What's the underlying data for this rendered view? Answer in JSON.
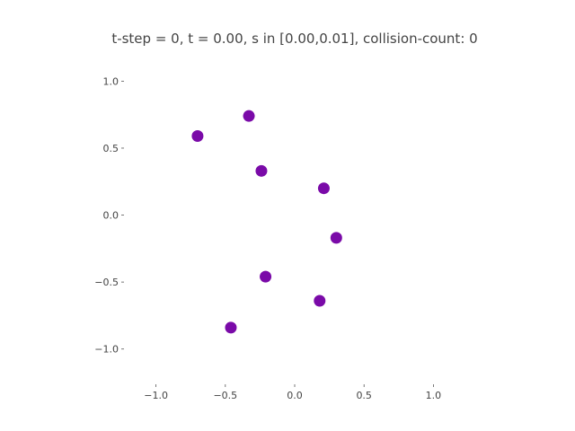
{
  "chart_data": {
    "type": "scatter",
    "title": "t-step = 0, t = 0.00, s in [0.00,0.01], collision-count: 0",
    "xlabel": "",
    "ylabel": "",
    "xlim": [
      -1.25,
      1.25
    ],
    "ylim": [
      -1.25,
      1.15
    ],
    "grid": false,
    "legend": "none",
    "x_ticks": [
      -1.0,
      -0.5,
      0.0,
      0.5,
      1.0
    ],
    "x_tick_labels": [
      "−1.0",
      "−0.5",
      "0.0",
      "0.5",
      "1.0"
    ],
    "y_ticks": [
      1.0,
      0.5,
      0.0,
      -0.5,
      -1.0
    ],
    "y_tick_labels": [
      "1.0",
      "0.5",
      "0.0",
      "−0.5",
      "−1.0"
    ],
    "marker_color": "#7a0aa8",
    "series": [
      {
        "points": [
          {
            "x": -0.33,
            "y": 0.74
          },
          {
            "x": -0.7,
            "y": 0.59
          },
          {
            "x": -0.24,
            "y": 0.33
          },
          {
            "x": 0.21,
            "y": 0.2
          },
          {
            "x": 0.3,
            "y": -0.17
          },
          {
            "x": -0.21,
            "y": -0.46
          },
          {
            "x": 0.18,
            "y": -0.64
          },
          {
            "x": -0.46,
            "y": -0.84
          }
        ]
      }
    ]
  }
}
